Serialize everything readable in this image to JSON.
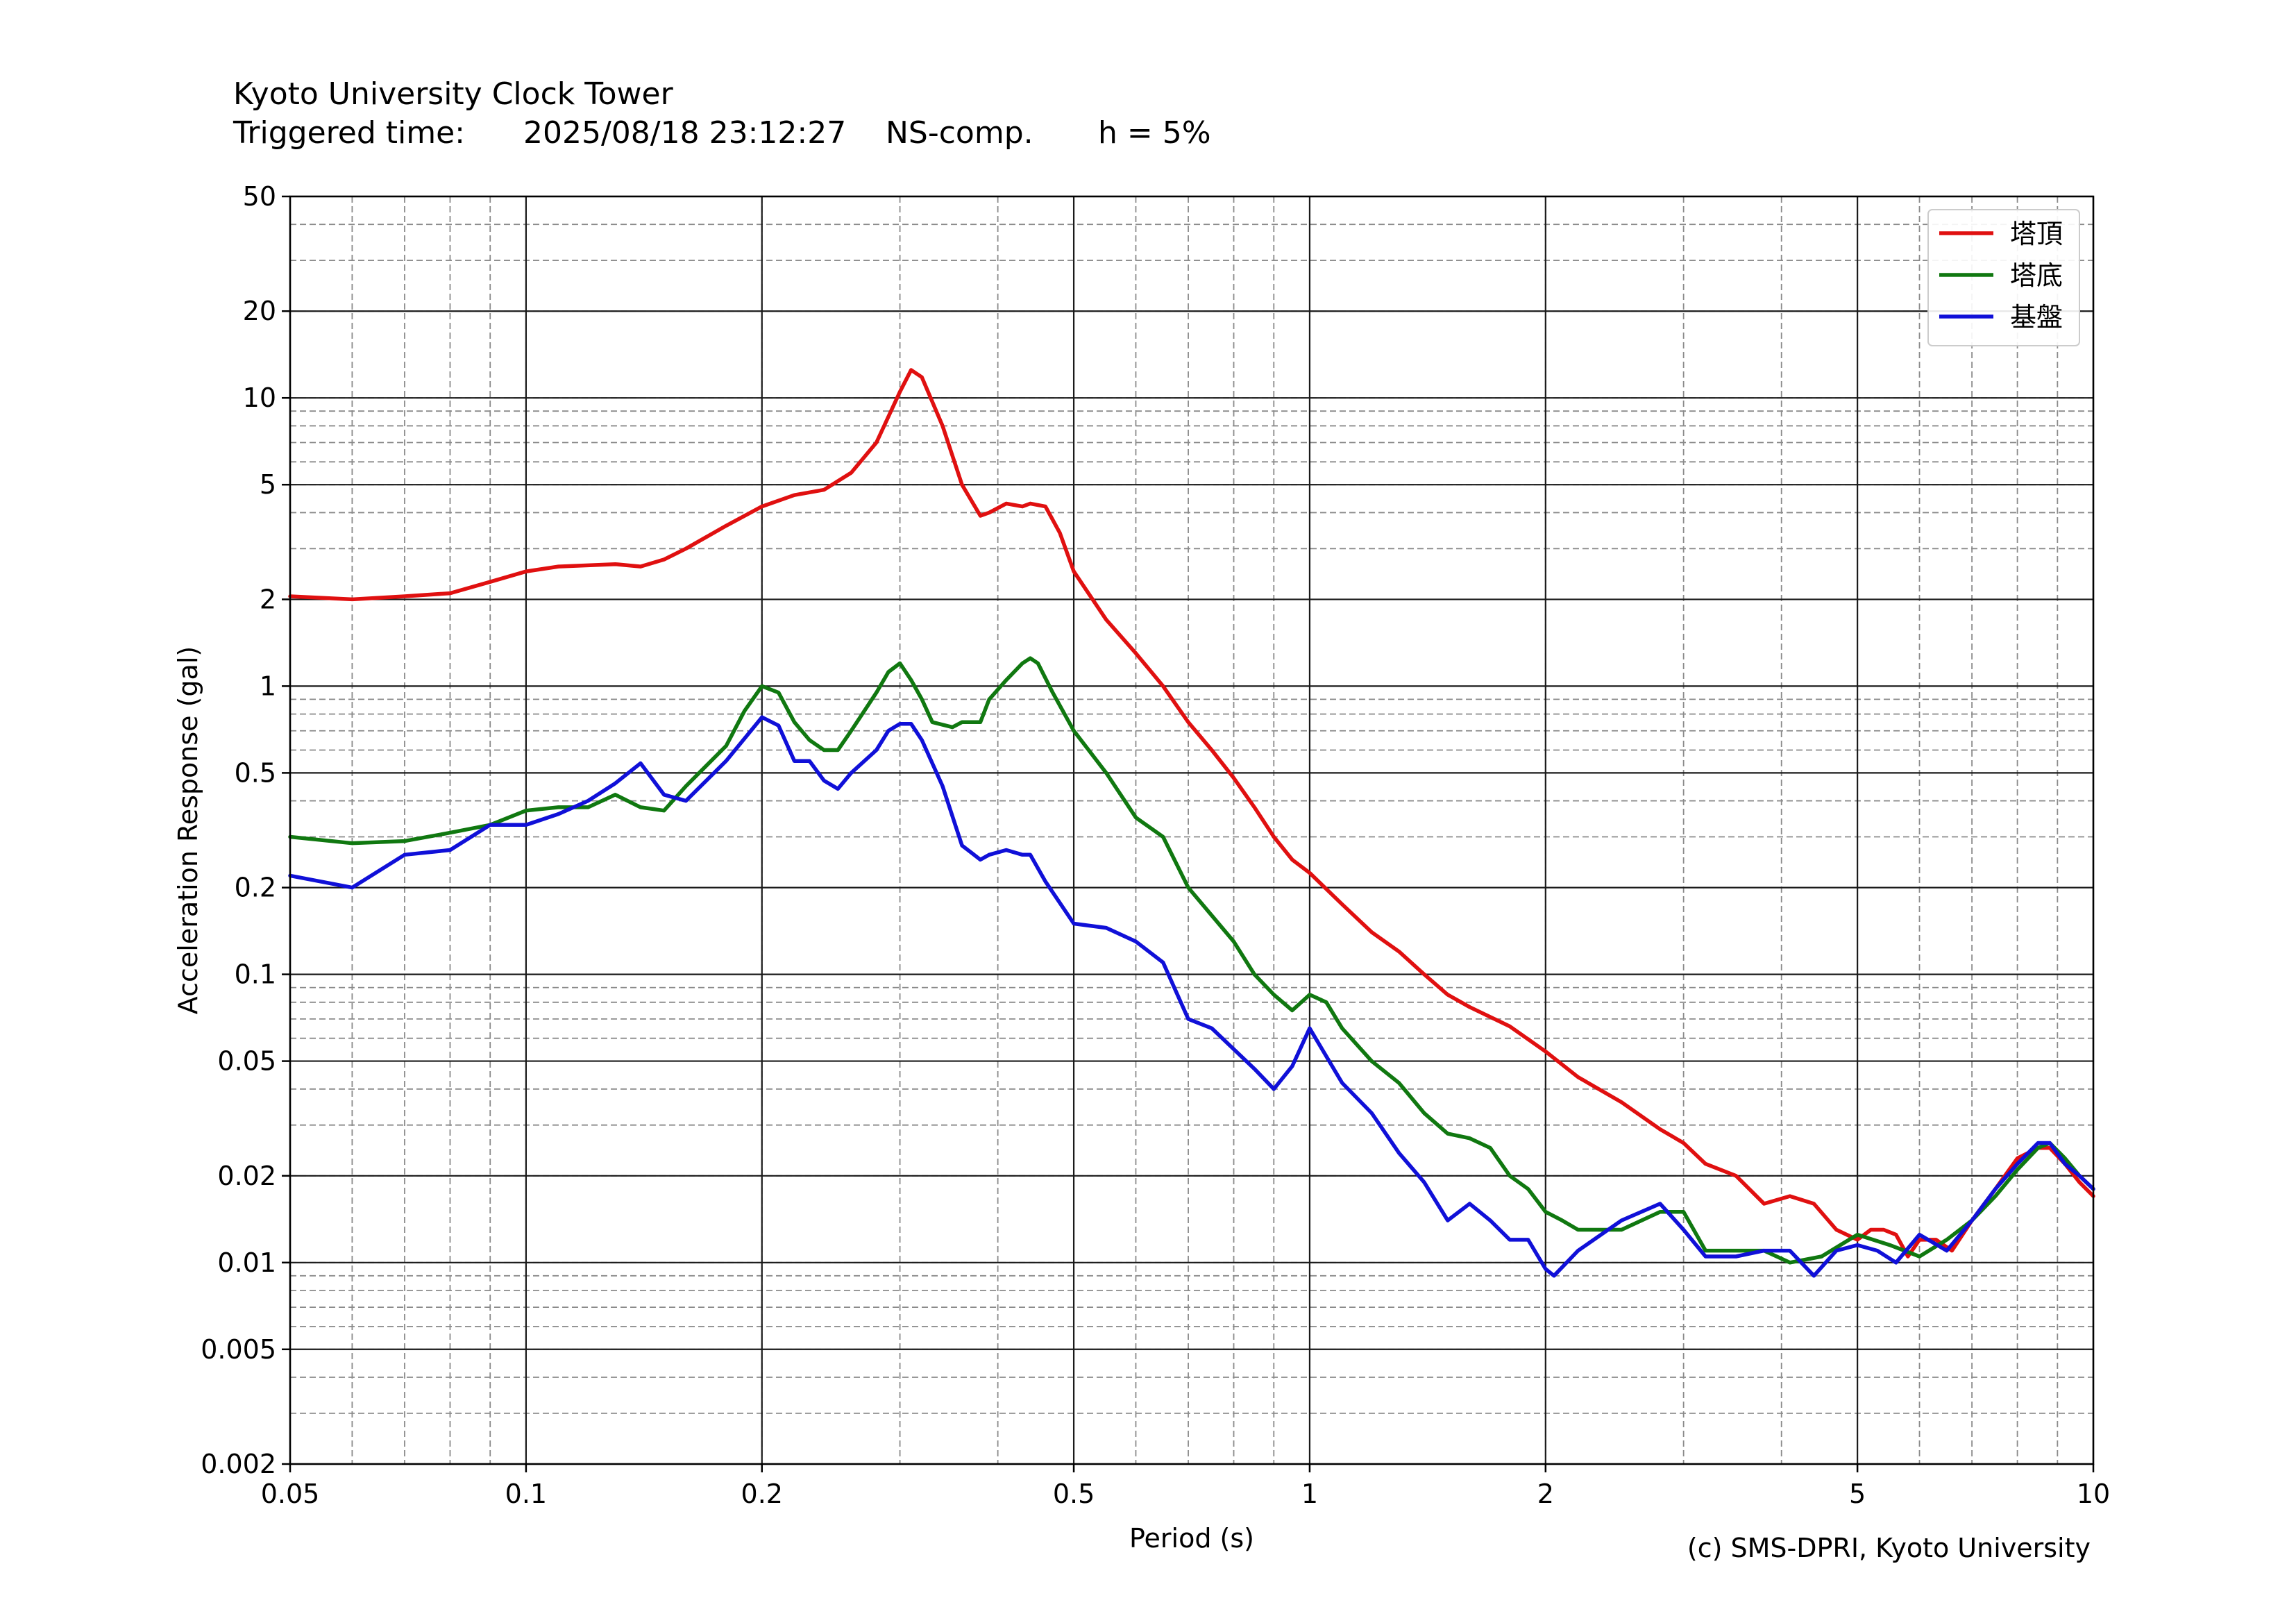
{
  "title": "Kyoto University Clock Tower",
  "trigger": {
    "label": "Triggered time:",
    "time": "2025/08/18 23:12:27",
    "component": "NS-comp.",
    "damping": "h = 5%"
  },
  "credit": "(c) SMS-DPRI, Kyoto University",
  "chart_data": {
    "type": "line",
    "xscale": "log",
    "yscale": "log",
    "xlabel": "Period (s)",
    "ylabel": "Acceleration Response (gal)",
    "xlim": [
      0.05,
      10
    ],
    "ylim": [
      0.002,
      50
    ],
    "xticks": [
      0.05,
      0.1,
      0.2,
      0.5,
      1,
      2,
      5,
      10
    ],
    "xtick_labels": [
      "0.05",
      "0.1",
      "0.2",
      "0.5",
      "1",
      "2",
      "5",
      "10"
    ],
    "yticks": [
      0.002,
      0.005,
      0.01,
      0.02,
      0.05,
      0.1,
      0.2,
      0.5,
      1,
      2,
      5,
      10,
      20,
      50
    ],
    "ytick_labels": [
      "0.002",
      "0.005",
      "0.01",
      "0.02",
      "0.05",
      "0.1",
      "0.2",
      "0.5",
      "1",
      "2",
      "5",
      "10",
      "20",
      "50"
    ],
    "grid": true,
    "legend_position": "top-right",
    "series": [
      {
        "name": "塔頂",
        "color": "#e01010",
        "x": [
          0.05,
          0.06,
          0.07,
          0.08,
          0.09,
          0.1,
          0.11,
          0.13,
          0.14,
          0.15,
          0.16,
          0.18,
          0.2,
          0.22,
          0.24,
          0.26,
          0.28,
          0.3,
          0.31,
          0.32,
          0.34,
          0.36,
          0.38,
          0.39,
          0.41,
          0.43,
          0.44,
          0.46,
          0.48,
          0.5,
          0.55,
          0.6,
          0.65,
          0.7,
          0.75,
          0.8,
          0.85,
          0.9,
          0.95,
          1.0,
          1.1,
          1.2,
          1.3,
          1.4,
          1.5,
          1.6,
          1.8,
          2.0,
          2.2,
          2.5,
          2.8,
          3.0,
          3.2,
          3.5,
          3.8,
          4.1,
          4.4,
          4.7,
          5.0,
          5.2,
          5.4,
          5.6,
          5.8,
          6.0,
          6.3,
          6.6,
          7.0,
          7.5,
          8.0,
          8.5,
          8.8,
          9.2,
          9.6,
          10.0
        ],
        "values": [
          2.05,
          2.0,
          2.05,
          2.1,
          2.3,
          2.5,
          2.6,
          2.65,
          2.6,
          2.75,
          3.0,
          3.6,
          4.2,
          4.6,
          4.8,
          5.5,
          7.0,
          10.5,
          12.5,
          11.8,
          8.0,
          5.0,
          3.9,
          4.0,
          4.3,
          4.2,
          4.3,
          4.2,
          3.4,
          2.5,
          1.7,
          1.3,
          1.0,
          0.75,
          0.6,
          0.48,
          0.38,
          0.3,
          0.25,
          0.225,
          0.175,
          0.14,
          0.12,
          0.1,
          0.085,
          0.077,
          0.066,
          0.054,
          0.044,
          0.036,
          0.029,
          0.026,
          0.022,
          0.02,
          0.016,
          0.017,
          0.016,
          0.013,
          0.012,
          0.013,
          0.013,
          0.0125,
          0.0105,
          0.012,
          0.012,
          0.011,
          0.014,
          0.018,
          0.023,
          0.025,
          0.025,
          0.022,
          0.019,
          0.017
        ]
      },
      {
        "name": "塔底",
        "color": "#107810",
        "x": [
          0.05,
          0.06,
          0.07,
          0.08,
          0.09,
          0.1,
          0.11,
          0.12,
          0.13,
          0.14,
          0.15,
          0.16,
          0.18,
          0.19,
          0.2,
          0.21,
          0.22,
          0.23,
          0.24,
          0.25,
          0.26,
          0.28,
          0.29,
          0.3,
          0.31,
          0.32,
          0.33,
          0.35,
          0.36,
          0.38,
          0.39,
          0.41,
          0.43,
          0.44,
          0.45,
          0.47,
          0.5,
          0.55,
          0.6,
          0.65,
          0.7,
          0.75,
          0.8,
          0.85,
          0.9,
          0.95,
          1.0,
          1.05,
          1.1,
          1.2,
          1.3,
          1.4,
          1.5,
          1.6,
          1.7,
          1.8,
          1.9,
          2.0,
          2.1,
          2.2,
          2.5,
          2.8,
          3.0,
          3.2,
          3.5,
          3.8,
          4.1,
          4.5,
          5.0,
          5.5,
          6.0,
          6.5,
          7.0,
          7.5,
          8.0,
          8.5,
          8.8,
          9.2,
          9.6,
          10.0
        ],
        "values": [
          0.3,
          0.285,
          0.29,
          0.31,
          0.33,
          0.37,
          0.38,
          0.38,
          0.42,
          0.38,
          0.37,
          0.45,
          0.62,
          0.82,
          1.0,
          0.95,
          0.75,
          0.65,
          0.6,
          0.6,
          0.7,
          0.95,
          1.12,
          1.2,
          1.05,
          0.9,
          0.75,
          0.72,
          0.75,
          0.75,
          0.9,
          1.05,
          1.2,
          1.25,
          1.2,
          0.95,
          0.7,
          0.5,
          0.35,
          0.3,
          0.2,
          0.16,
          0.13,
          0.1,
          0.085,
          0.075,
          0.085,
          0.08,
          0.065,
          0.05,
          0.042,
          0.033,
          0.028,
          0.027,
          0.025,
          0.02,
          0.018,
          0.015,
          0.014,
          0.013,
          0.013,
          0.015,
          0.015,
          0.011,
          0.011,
          0.011,
          0.01,
          0.0105,
          0.0125,
          0.0115,
          0.0105,
          0.012,
          0.014,
          0.017,
          0.021,
          0.025,
          0.026,
          0.023,
          0.02,
          0.018
        ]
      },
      {
        "name": "基盤",
        "color": "#1010d8",
        "x": [
          0.05,
          0.06,
          0.07,
          0.08,
          0.09,
          0.1,
          0.11,
          0.12,
          0.13,
          0.14,
          0.15,
          0.16,
          0.18,
          0.2,
          0.21,
          0.22,
          0.23,
          0.24,
          0.25,
          0.26,
          0.28,
          0.29,
          0.3,
          0.31,
          0.32,
          0.34,
          0.36,
          0.38,
          0.39,
          0.41,
          0.43,
          0.44,
          0.46,
          0.5,
          0.55,
          0.6,
          0.65,
          0.7,
          0.75,
          0.8,
          0.85,
          0.9,
          0.95,
          1.0,
          1.1,
          1.2,
          1.3,
          1.4,
          1.5,
          1.6,
          1.7,
          1.8,
          1.9,
          2.0,
          2.05,
          2.2,
          2.5,
          2.8,
          3.0,
          3.2,
          3.5,
          3.8,
          4.1,
          4.4,
          4.7,
          5.0,
          5.3,
          5.6,
          6.0,
          6.5,
          7.0,
          7.5,
          8.0,
          8.5,
          8.8,
          9.2,
          9.6,
          10.0
        ],
        "values": [
          0.22,
          0.2,
          0.26,
          0.27,
          0.33,
          0.33,
          0.36,
          0.4,
          0.46,
          0.54,
          0.42,
          0.4,
          0.55,
          0.78,
          0.73,
          0.55,
          0.55,
          0.47,
          0.44,
          0.5,
          0.6,
          0.7,
          0.74,
          0.74,
          0.65,
          0.45,
          0.28,
          0.25,
          0.26,
          0.27,
          0.26,
          0.26,
          0.21,
          0.15,
          0.145,
          0.13,
          0.11,
          0.07,
          0.065,
          0.055,
          0.047,
          0.04,
          0.048,
          0.065,
          0.042,
          0.033,
          0.024,
          0.019,
          0.014,
          0.016,
          0.014,
          0.012,
          0.012,
          0.0095,
          0.009,
          0.011,
          0.014,
          0.016,
          0.013,
          0.0105,
          0.0105,
          0.011,
          0.011,
          0.009,
          0.011,
          0.0115,
          0.011,
          0.01,
          0.0125,
          0.011,
          0.014,
          0.018,
          0.022,
          0.026,
          0.026,
          0.022,
          0.02,
          0.018
        ]
      }
    ]
  }
}
